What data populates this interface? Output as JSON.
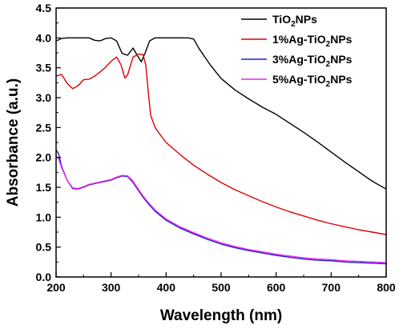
{
  "chart_data": {
    "type": "line",
    "title": "",
    "xlabel": "Wavelength (nm)",
    "ylabel": "Absorbance (a.u.)",
    "xlim": [
      200,
      800
    ],
    "ylim": [
      0.0,
      4.5
    ],
    "x_ticks": [
      200,
      300,
      400,
      500,
      600,
      700,
      800
    ],
    "x_tick_labels": [
      "200",
      "300",
      "400",
      "500",
      "600",
      "700",
      "800"
    ],
    "y_ticks": [
      0.0,
      0.5,
      1.0,
      1.5,
      2.0,
      2.5,
      3.0,
      3.5,
      4.0,
      4.5
    ],
    "y_tick_labels": [
      "0.0",
      "0.5",
      "1.0",
      "1.5",
      "2.0",
      "2.5",
      "3.0",
      "3.5",
      "4.0",
      "4.5"
    ],
    "grid": false,
    "legend_position": "top-right",
    "series": [
      {
        "name": "TiO2NPs",
        "legend_main": "TiO",
        "legend_sub": "2",
        "legend_tail": "NPs",
        "color": "#000000",
        "points": [
          [
            200,
            3.95
          ],
          [
            210,
            3.99
          ],
          [
            220,
            4.0
          ],
          [
            240,
            4.0
          ],
          [
            260,
            4.0
          ],
          [
            270,
            3.96
          ],
          [
            280,
            3.95
          ],
          [
            290,
            3.99
          ],
          [
            300,
            4.0
          ],
          [
            310,
            3.95
          ],
          [
            320,
            3.74
          ],
          [
            330,
            3.71
          ],
          [
            340,
            3.83
          ],
          [
            348,
            3.7
          ],
          [
            355,
            3.6
          ],
          [
            362,
            3.75
          ],
          [
            370,
            3.95
          ],
          [
            380,
            4.0
          ],
          [
            400,
            4.0
          ],
          [
            420,
            4.0
          ],
          [
            440,
            4.0
          ],
          [
            450,
            3.98
          ],
          [
            460,
            3.82
          ],
          [
            480,
            3.55
          ],
          [
            500,
            3.32
          ],
          [
            525,
            3.13
          ],
          [
            550,
            2.98
          ],
          [
            575,
            2.84
          ],
          [
            600,
            2.72
          ],
          [
            625,
            2.57
          ],
          [
            650,
            2.42
          ],
          [
            675,
            2.26
          ],
          [
            700,
            2.09
          ],
          [
            725,
            1.92
          ],
          [
            750,
            1.76
          ],
          [
            775,
            1.6
          ],
          [
            800,
            1.47
          ]
        ]
      },
      {
        "name": "1%Ag-TiO2NPs",
        "legend_main": "1%Ag-TiO",
        "legend_sub": "2",
        "legend_tail": "NPs",
        "color": "#e00000",
        "points": [
          [
            200,
            3.36
          ],
          [
            210,
            3.39
          ],
          [
            220,
            3.24
          ],
          [
            230,
            3.15
          ],
          [
            240,
            3.2
          ],
          [
            250,
            3.3
          ],
          [
            260,
            3.31
          ],
          [
            270,
            3.36
          ],
          [
            280,
            3.43
          ],
          [
            290,
            3.51
          ],
          [
            300,
            3.61
          ],
          [
            310,
            3.68
          ],
          [
            318,
            3.55
          ],
          [
            325,
            3.33
          ],
          [
            330,
            3.38
          ],
          [
            340,
            3.68
          ],
          [
            350,
            3.73
          ],
          [
            358,
            3.72
          ],
          [
            363,
            3.55
          ],
          [
            368,
            3.05
          ],
          [
            372,
            2.7
          ],
          [
            380,
            2.5
          ],
          [
            390,
            2.37
          ],
          [
            400,
            2.25
          ],
          [
            425,
            2.05
          ],
          [
            450,
            1.87
          ],
          [
            475,
            1.72
          ],
          [
            500,
            1.58
          ],
          [
            525,
            1.46
          ],
          [
            550,
            1.36
          ],
          [
            575,
            1.26
          ],
          [
            600,
            1.17
          ],
          [
            625,
            1.09
          ],
          [
            650,
            1.02
          ],
          [
            675,
            0.95
          ],
          [
            700,
            0.89
          ],
          [
            725,
            0.84
          ],
          [
            750,
            0.79
          ],
          [
            775,
            0.75
          ],
          [
            800,
            0.71
          ]
        ]
      },
      {
        "name": "3%Ag-TiO2NPs",
        "legend_main": "3%Ag-TiO",
        "legend_sub": "2",
        "legend_tail": "NPs",
        "color": "#2020d0",
        "points": [
          [
            200,
            2.13
          ],
          [
            205,
            2.05
          ],
          [
            210,
            1.85
          ],
          [
            220,
            1.62
          ],
          [
            230,
            1.48
          ],
          [
            240,
            1.47
          ],
          [
            250,
            1.5
          ],
          [
            260,
            1.54
          ],
          [
            280,
            1.58
          ],
          [
            300,
            1.62
          ],
          [
            310,
            1.66
          ],
          [
            320,
            1.69
          ],
          [
            330,
            1.68
          ],
          [
            340,
            1.58
          ],
          [
            350,
            1.44
          ],
          [
            360,
            1.31
          ],
          [
            370,
            1.2
          ],
          [
            380,
            1.1
          ],
          [
            400,
            0.95
          ],
          [
            425,
            0.82
          ],
          [
            450,
            0.72
          ],
          [
            475,
            0.63
          ],
          [
            500,
            0.55
          ],
          [
            525,
            0.49
          ],
          [
            550,
            0.44
          ],
          [
            575,
            0.4
          ],
          [
            600,
            0.36
          ],
          [
            625,
            0.33
          ],
          [
            650,
            0.3
          ],
          [
            675,
            0.28
          ],
          [
            700,
            0.27
          ],
          [
            725,
            0.25
          ],
          [
            750,
            0.24
          ],
          [
            775,
            0.23
          ],
          [
            800,
            0.22
          ]
        ]
      },
      {
        "name": "5%Ag-TiO2NPs",
        "legend_main": "5%Ag-TiO",
        "legend_sub": "2",
        "legend_tail": "NPs",
        "color": "#ee22ee",
        "points": [
          [
            200,
            2.02
          ],
          [
            205,
            1.97
          ],
          [
            210,
            1.83
          ],
          [
            220,
            1.62
          ],
          [
            230,
            1.49
          ],
          [
            240,
            1.48
          ],
          [
            250,
            1.51
          ],
          [
            260,
            1.55
          ],
          [
            280,
            1.59
          ],
          [
            300,
            1.63
          ],
          [
            310,
            1.67
          ],
          [
            320,
            1.7
          ],
          [
            330,
            1.69
          ],
          [
            340,
            1.6
          ],
          [
            350,
            1.46
          ],
          [
            360,
            1.33
          ],
          [
            370,
            1.22
          ],
          [
            380,
            1.12
          ],
          [
            400,
            0.97
          ],
          [
            425,
            0.84
          ],
          [
            450,
            0.74
          ],
          [
            475,
            0.65
          ],
          [
            500,
            0.57
          ],
          [
            525,
            0.51
          ],
          [
            550,
            0.46
          ],
          [
            575,
            0.42
          ],
          [
            600,
            0.38
          ],
          [
            625,
            0.35
          ],
          [
            650,
            0.32
          ],
          [
            675,
            0.3
          ],
          [
            700,
            0.29
          ],
          [
            725,
            0.27
          ],
          [
            750,
            0.26
          ],
          [
            775,
            0.25
          ],
          [
            800,
            0.24
          ]
        ]
      }
    ]
  }
}
